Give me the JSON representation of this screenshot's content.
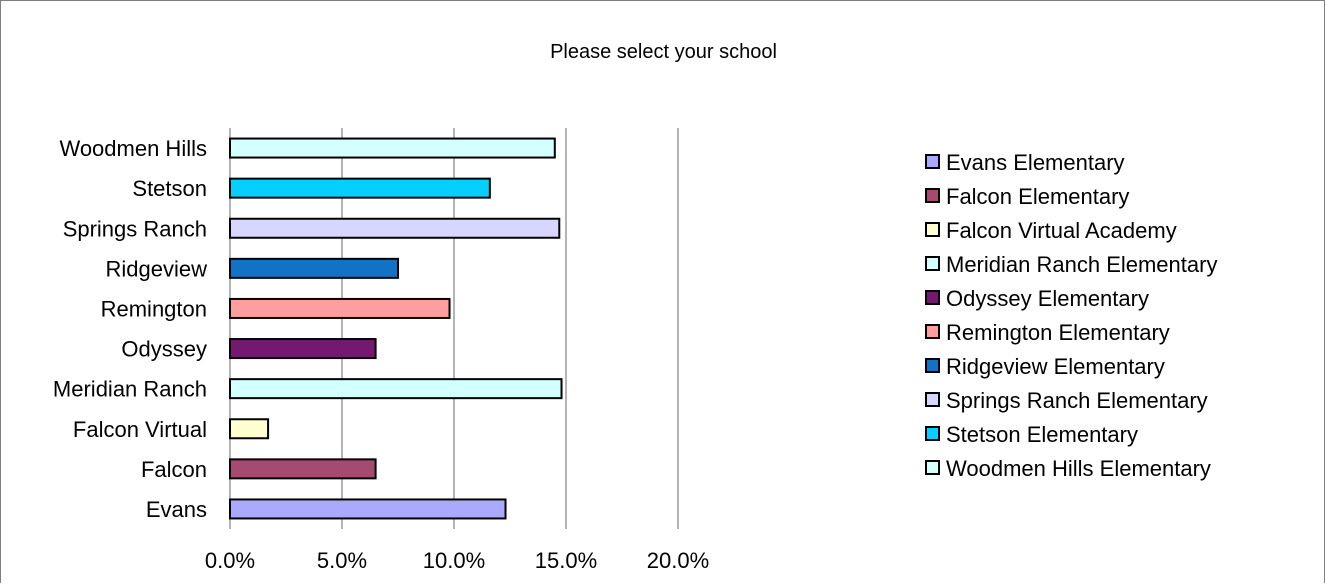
{
  "chart_data": {
    "type": "bar",
    "orientation": "horizontal",
    "title": "Please select your school",
    "xlabel": "",
    "ylabel": "",
    "xlim": [
      0,
      20
    ],
    "x_ticks": [
      "0.0%",
      "5.0%",
      "10.0%",
      "15.0%",
      "20.0%"
    ],
    "grid": "vertical",
    "legend_position": "right",
    "categories": [
      "Evans",
      "Falcon",
      "Falcon Virtual",
      "Meridian Ranch",
      "Odyssey",
      "Remington",
      "Ridgeview",
      "Springs Ranch",
      "Stetson",
      "Woodmen Hills"
    ],
    "values": [
      12.3,
      6.5,
      1.7,
      14.8,
      6.5,
      9.8,
      7.5,
      14.7,
      11.6,
      14.5
    ],
    "colors": [
      "#A9A9FF",
      "#A74A71",
      "#FFFFD2",
      "#D4FFFF",
      "#74196F",
      "#FF9E9E",
      "#1272C6",
      "#D6D6FF",
      "#05CFFF",
      "#D4FFFF"
    ],
    "legend": [
      "Evans Elementary",
      "Falcon Elementary",
      "Falcon Virtual Academy",
      "Meridian Ranch Elementary",
      "Odyssey Elementary",
      "Remington Elementary",
      "Ridgeview Elementary",
      "Springs Ranch Elementary",
      "Stetson Elementary",
      "Woodmen Hills Elementary"
    ]
  }
}
